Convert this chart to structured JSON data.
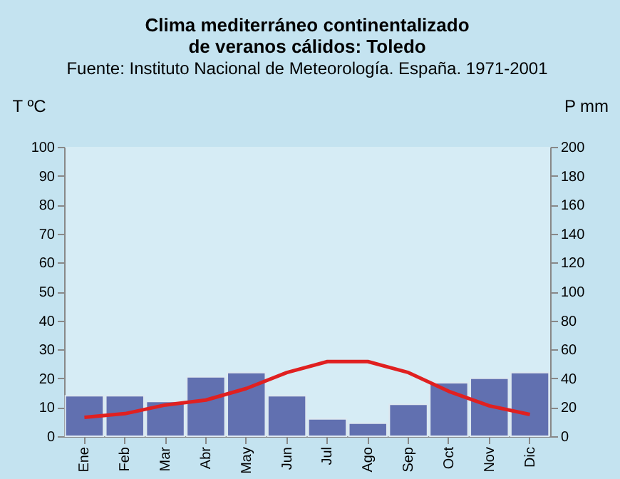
{
  "chart_data": {
    "type": "bar",
    "title": [
      "Clima mediterráneo continentalizado",
      "de veranos cálidos: Toledo"
    ],
    "ylabel": "T ºC",
    "y2label": "P mm",
    "categories": [
      "Ene",
      "Feb",
      "Mar",
      "Abr",
      "May",
      "Jun",
      "Jul",
      "Ago",
      "Sep",
      "Oct",
      "Nov",
      "Dic"
    ],
    "series": [
      {
        "axis": "y2",
        "color": "#6170b0",
        "values": [
          28,
          28,
          24,
          41,
          44,
          28,
          12,
          9,
          22,
          37,
          40,
          44
        ]
      },
      {
        "type": "line",
        "axis": "y",
        "color": "#e02020",
        "values": [
          6.5,
          7.8,
          10.8,
          12.5,
          16.5,
          22,
          25.8,
          25.8,
          22,
          15.5,
          10.5,
          7.5
        ]
      }
    ],
    "ylim": [
      0,
      100
    ],
    "yticks": [
      0,
      10,
      20,
      30,
      40,
      50,
      60,
      70,
      80,
      90,
      100
    ],
    "y2lim": [
      0,
      200
    ],
    "y2ticks": [
      0,
      20,
      40,
      60,
      80,
      100,
      120,
      140,
      160,
      180,
      200
    ],
    "grid": false,
    "legend": false,
    "marker": "none",
    "line_style": "solid",
    "annotations": [
      "Fuente: Instituto Nacional de Meteorología. España. 1971-2001"
    ]
  }
}
